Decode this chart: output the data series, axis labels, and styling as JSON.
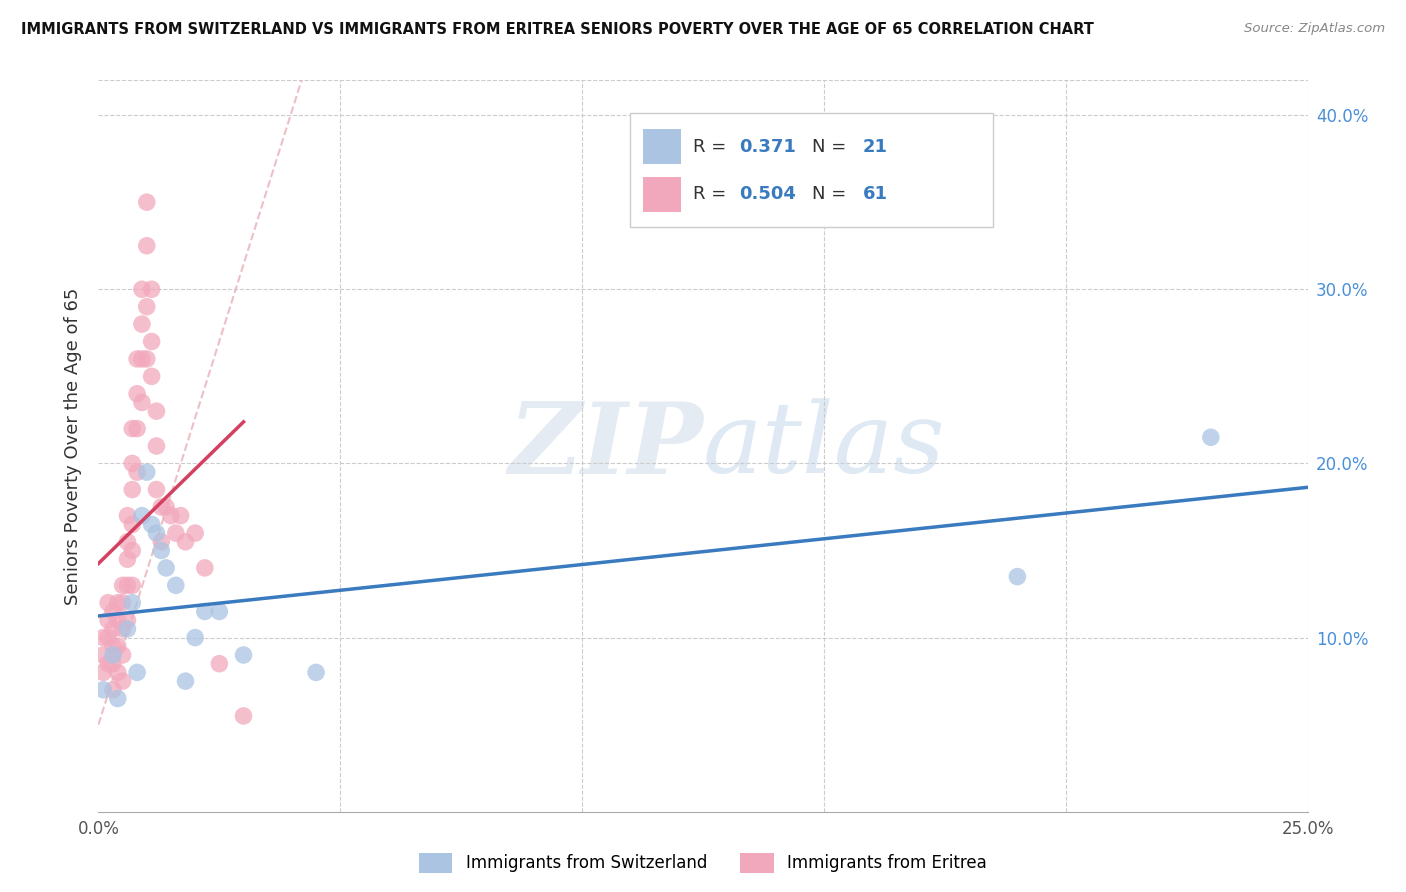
{
  "title": "IMMIGRANTS FROM SWITZERLAND VS IMMIGRANTS FROM ERITREA SENIORS POVERTY OVER THE AGE OF 65 CORRELATION CHART",
  "source": "Source: ZipAtlas.com",
  "ylabel": "Seniors Poverty Over the Age of 65",
  "xlim": [
    0.0,
    0.25
  ],
  "ylim": [
    0.0,
    0.42
  ],
  "xticks": [
    0.0,
    0.05,
    0.1,
    0.15,
    0.2,
    0.25
  ],
  "yticks": [
    0.0,
    0.1,
    0.2,
    0.3,
    0.4
  ],
  "ytick_labels": [
    "",
    "10.0%",
    "20.0%",
    "30.0%",
    "40.0%"
  ],
  "xtick_labels": [
    "0.0%",
    "",
    "",
    "",
    "",
    "25.0%"
  ],
  "r_switzerland": 0.371,
  "n_switzerland": 21,
  "r_eritrea": 0.504,
  "n_eritrea": 61,
  "color_switzerland": "#aac4e2",
  "color_eritrea": "#f2a8bc",
  "line_color_switzerland": "#3a7abf",
  "line_color_eritrea": "#d44060",
  "watermark_zip": "ZIP",
  "watermark_atlas": "atlas",
  "switzerland_x": [
    0.001,
    0.003,
    0.004,
    0.006,
    0.007,
    0.008,
    0.009,
    0.01,
    0.011,
    0.012,
    0.013,
    0.014,
    0.016,
    0.018,
    0.02,
    0.022,
    0.025,
    0.03,
    0.045,
    0.19,
    0.23
  ],
  "switzerland_y": [
    0.07,
    0.09,
    0.065,
    0.105,
    0.12,
    0.08,
    0.17,
    0.195,
    0.165,
    0.16,
    0.15,
    0.14,
    0.13,
    0.075,
    0.1,
    0.115,
    0.115,
    0.09,
    0.08,
    0.135,
    0.215
  ],
  "eritrea_x": [
    0.001,
    0.001,
    0.001,
    0.002,
    0.002,
    0.002,
    0.002,
    0.003,
    0.003,
    0.003,
    0.003,
    0.003,
    0.004,
    0.004,
    0.004,
    0.004,
    0.005,
    0.005,
    0.005,
    0.005,
    0.005,
    0.006,
    0.006,
    0.006,
    0.006,
    0.006,
    0.007,
    0.007,
    0.007,
    0.007,
    0.007,
    0.007,
    0.008,
    0.008,
    0.008,
    0.008,
    0.009,
    0.009,
    0.009,
    0.009,
    0.01,
    0.01,
    0.01,
    0.01,
    0.011,
    0.011,
    0.011,
    0.012,
    0.012,
    0.012,
    0.013,
    0.013,
    0.014,
    0.015,
    0.016,
    0.017,
    0.018,
    0.02,
    0.022,
    0.025,
    0.03
  ],
  "eritrea_y": [
    0.1,
    0.09,
    0.08,
    0.12,
    0.11,
    0.1,
    0.085,
    0.115,
    0.105,
    0.095,
    0.085,
    0.07,
    0.12,
    0.11,
    0.095,
    0.08,
    0.13,
    0.12,
    0.105,
    0.09,
    0.075,
    0.17,
    0.155,
    0.145,
    0.13,
    0.11,
    0.22,
    0.2,
    0.185,
    0.165,
    0.15,
    0.13,
    0.26,
    0.24,
    0.22,
    0.195,
    0.3,
    0.28,
    0.26,
    0.235,
    0.35,
    0.325,
    0.29,
    0.26,
    0.3,
    0.27,
    0.25,
    0.23,
    0.21,
    0.185,
    0.175,
    0.155,
    0.175,
    0.17,
    0.16,
    0.17,
    0.155,
    0.16,
    0.14,
    0.085,
    0.055
  ]
}
